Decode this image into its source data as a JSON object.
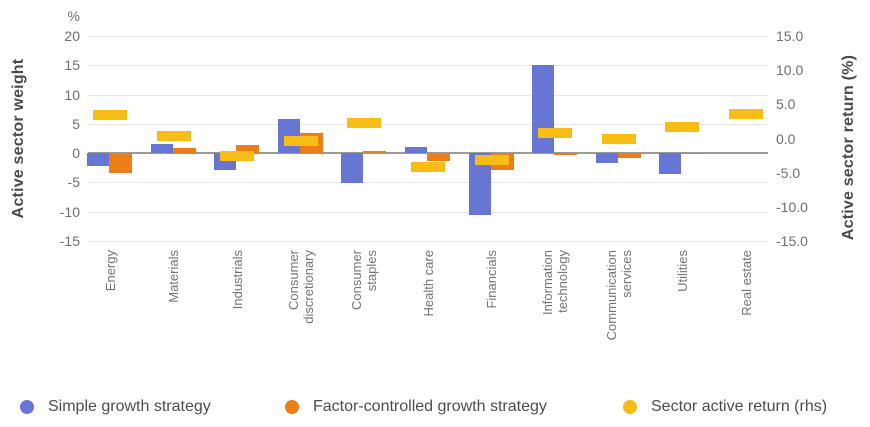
{
  "left_axis": {
    "title": "Active sector weight",
    "unit_label": "%",
    "ticks": [
      "20",
      "15",
      "10",
      "5",
      "0",
      "-5",
      "-10",
      "-15"
    ],
    "range": [
      -15,
      20
    ]
  },
  "right_axis": {
    "title": "Active sector return (%)",
    "ticks": [
      "15.0",
      "10.0",
      "5.0",
      "0.0",
      "-5.0",
      "-10.0",
      "-15.0"
    ],
    "range": [
      -15,
      15
    ]
  },
  "chart_data": {
    "type": "bar",
    "grid": true,
    "legend_position": "bottom",
    "categories": [
      "Energy",
      "Materials",
      "Industrials",
      "Consumer discretionary",
      "Consumer staples",
      "Health care",
      "Financials",
      "Information technology",
      "Communication services",
      "Utilities",
      "Real estate"
    ],
    "left_ylim": [
      -15,
      20
    ],
    "right_ylim": [
      -15,
      15
    ],
    "series": [
      {
        "name": "Simple growth strategy",
        "axis": "left",
        "mark": "bar",
        "color": "#6775D3",
        "values": [
          -2.2,
          1.6,
          -2.9,
          5.8,
          -5.1,
          1.1,
          -10.6,
          15.0,
          -1.7,
          -3.5,
          0
        ]
      },
      {
        "name": "Factor-controlled growth strategy",
        "axis": "left",
        "mark": "bar",
        "color": "#ED7D16",
        "values": [
          -3.4,
          0.8,
          1.4,
          3.4,
          0.4,
          -1.4,
          -2.8,
          -0.4,
          -0.8,
          -0.2,
          0
        ]
      },
      {
        "name": "Sector active return (rhs)",
        "axis": "right",
        "mark": "dash",
        "color": "#F7BD16",
        "values": [
          3.4,
          0.3,
          -2.6,
          -0.3,
          2.2,
          -4.1,
          -3.1,
          0.8,
          0.0,
          1.7,
          3.6
        ]
      }
    ]
  },
  "colors": {
    "gridline": "#e8e8e8",
    "zeroline": "#9a9a9a",
    "tick_text": "#6f6f6f",
    "axis_title_text": "#4a4a4a",
    "category_text": "#757575",
    "legend_text": "#4d4d4d"
  }
}
